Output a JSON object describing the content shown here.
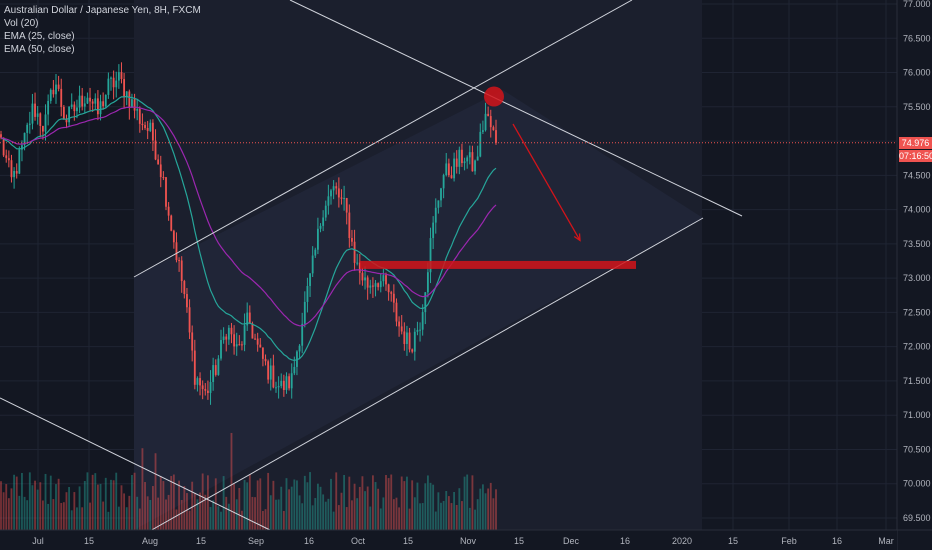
{
  "legend": {
    "symbol": "Australian Dollar / Japanese Yen, 8H, FXCM",
    "vol": "Vol (20)",
    "ema25": "EMA (25, close)",
    "ema50": "EMA (50, close)"
  },
  "price_axis": {
    "ticks": [
      "77.000",
      "76.500",
      "76.000",
      "75.500",
      "75.000",
      "74.500",
      "74.000",
      "73.500",
      "73.000",
      "72.500",
      "72.000",
      "71.500",
      "71.000",
      "70.500",
      "70.000",
      "69.500"
    ],
    "current_price": "74.976",
    "countdown": "07:16:50"
  },
  "time_axis": {
    "ticks": [
      "Jul",
      "15",
      "Aug",
      "15",
      "Sep",
      "16",
      "Oct",
      "15",
      "Nov",
      "15",
      "Dec",
      "16",
      "2020",
      "15",
      "Feb",
      "16",
      "Mar"
    ]
  },
  "colors": {
    "background": "#131722",
    "up": "#26a69a",
    "down": "#ef5350",
    "ema25": "#26a69a",
    "ema50": "#9c27b0",
    "annotation": "#d3141a",
    "trendline": "#d1d4dc"
  },
  "chart_data": {
    "type": "candlestick",
    "symbol": "Australian Dollar / Japanese Yen, 8H, FXCM",
    "ylim": [
      69.3,
      77.0
    ],
    "y_ticks": [
      77.0,
      76.5,
      76.0,
      75.5,
      75.0,
      74.5,
      74.0,
      73.5,
      73.0,
      72.5,
      72.0,
      71.5,
      71.0,
      70.5,
      70.0,
      69.5
    ],
    "x_ticks": [
      "Jul",
      "15",
      "Aug",
      "15",
      "Sep",
      "16",
      "Oct",
      "15",
      "Nov",
      "15",
      "Dec",
      "16",
      "2020",
      "15",
      "Feb",
      "16",
      "Mar"
    ],
    "close_path": [
      75.0,
      74.4,
      74.9,
      75.5,
      75.2,
      75.9,
      75.3,
      75.5,
      75.7,
      75.4,
      75.8,
      75.9,
      75.6,
      75.3,
      75.1,
      74.5,
      73.6,
      72.8,
      71.6,
      71.3,
      71.7,
      72.3,
      71.9,
      72.4,
      71.9,
      71.6,
      71.4,
      71.5,
      72.4,
      73.2,
      74.1,
      74.3,
      74.0,
      73.2,
      72.9,
      73.0,
      72.8,
      72.3,
      72.0,
      72.4,
      73.6,
      74.5,
      74.6,
      74.8,
      74.6,
      75.4,
      75.0
    ],
    "last_price": 74.976,
    "series": [
      {
        "name": "EMA (25, close)"
      },
      {
        "name": "EMA (50, close)"
      },
      {
        "name": "Vol (20)"
      }
    ],
    "annotations": {
      "resistance_level": 73.2,
      "target_arrow_end": 73.55,
      "highlighted_high": 75.65
    },
    "grid": true
  }
}
